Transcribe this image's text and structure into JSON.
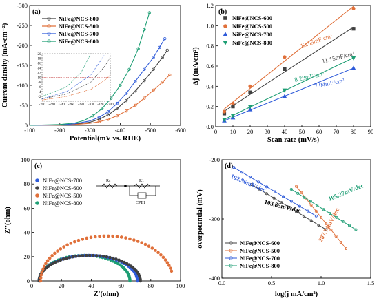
{
  "colors": {
    "NiFe@NCS-600": "#404040",
    "NiFe@NCS-500": "#e0703a",
    "NiFe@NCS-700": "#2f5bd9",
    "NiFe@NCS-800": "#1e9e74",
    "NiFe@NCS-600-dark": "#444444"
  },
  "chart_data": [
    {
      "panel": "(a)",
      "type": "line",
      "xlabel": "Potential(mV vs. RHE)",
      "ylabel": "Current density (mA·cm⁻²)",
      "xlim": [
        -100,
        -600
      ],
      "ylim": [
        0,
        -300
      ],
      "xticks": [
        -100,
        -200,
        -300,
        -400,
        -500,
        -600
      ],
      "yticks": [
        0,
        -50,
        -100,
        -150,
        -200,
        -250,
        -300
      ],
      "legend_position": "top-left",
      "series": [
        {
          "name": "NiFe@NCS-600",
          "x": [
            -100,
            -200,
            -250,
            -300,
            -330,
            -360,
            -390,
            -420,
            -450,
            -480,
            -510,
            -540,
            -556
          ],
          "y": [
            0,
            -1,
            -3,
            -8,
            -15,
            -26,
            -42,
            -62,
            -86,
            -112,
            -140,
            -170,
            -188
          ]
        },
        {
          "name": "NiFe@NCS-500",
          "x": [
            -100,
            -200,
            -250,
            -300,
            -330,
            -360,
            -390,
            -420,
            -450,
            -480,
            -510,
            -540,
            -564
          ],
          "y": [
            0,
            -0.5,
            -2,
            -5,
            -9,
            -15,
            -24,
            -36,
            -50,
            -68,
            -88,
            -108,
            -126
          ]
        },
        {
          "name": "NiFe@NCS-700",
          "x": [
            -100,
            -200,
            -250,
            -300,
            -330,
            -360,
            -390,
            -420,
            -450,
            -480,
            -510,
            -530,
            -548
          ],
          "y": [
            0,
            -1,
            -4,
            -11,
            -20,
            -34,
            -55,
            -80,
            -110,
            -140,
            -170,
            -195,
            -217
          ]
        },
        {
          "name": "NiFe@NCS-800",
          "x": [
            -100,
            -200,
            -250,
            -280,
            -310,
            -340,
            -370,
            -400,
            -430,
            -460,
            -480,
            -497
          ],
          "y": [
            0,
            -2,
            -6,
            -12,
            -24,
            -42,
            -68,
            -100,
            -140,
            -192,
            -240,
            -282
          ]
        }
      ],
      "inset": {
        "xlim": [
          -200,
          -340
        ],
        "ylim": [
          0,
          -20
        ],
        "xticks": [
          -200,
          -220,
          -240,
          -260,
          -280,
          -300,
          -320,
          -340
        ],
        "yticks": [
          -2,
          -4,
          -6,
          -8,
          -10,
          -12,
          -14,
          -16,
          -18,
          -20
        ],
        "reference_line_y": -10
      }
    },
    {
      "panel": "(b)",
      "type": "scatter",
      "xlabel": "Scan rate (mV/s)",
      "ylabel": "Δj (mA/cm²)",
      "xlim": [
        0,
        90
      ],
      "ylim": [
        0,
        1.2
      ],
      "xticks": [
        0,
        10,
        20,
        30,
        40,
        50,
        60,
        70,
        80,
        90
      ],
      "yticks": [
        0.0,
        0.2,
        0.4,
        0.6,
        0.8,
        1.0,
        1.2
      ],
      "legend_position": "top-left",
      "x": [
        5,
        10,
        20,
        40,
        80
      ],
      "series": [
        {
          "name": "NiFe@NCS-600",
          "values": [
            0.13,
            0.2,
            0.34,
            0.57,
            0.97
          ],
          "fit_label": "11.15mF/cm²"
        },
        {
          "name": "NiFe@NCS-500",
          "values": [
            0.15,
            0.23,
            0.4,
            0.69,
            1.17
          ],
          "fit_label": "13.55mF/cm²"
        },
        {
          "name": "NiFe@NCS-700",
          "values": [
            0.06,
            0.09,
            0.17,
            0.3,
            0.58
          ],
          "fit_label": "7.04mF/cm²"
        },
        {
          "name": "NiFe@NCS-800",
          "values": [
            0.07,
            0.11,
            0.2,
            0.36,
            0.68
          ],
          "fit_label": "8.28mF/cm²"
        }
      ]
    },
    {
      "panel": "(c)",
      "type": "scatter",
      "xlabel": "Z'(ohm)",
      "ylabel": "Z''(ohm)",
      "xlim": [
        0,
        100
      ],
      "ylim": [
        0,
        100
      ],
      "xticks": [
        0,
        20,
        40,
        60,
        80,
        100
      ],
      "yticks": [
        0,
        20,
        40,
        60,
        80,
        100
      ],
      "legend_position": "top-left",
      "circuit_labels": [
        "Rs",
        "R1",
        "CPE1"
      ],
      "series": [
        {
          "name": "NiFe@NCS-700",
          "r_start": 5,
          "r_end": 71,
          "peak": 21
        },
        {
          "name": "NiFe@NCS-600",
          "r_start": 5,
          "r_end": 73,
          "peak": 21
        },
        {
          "name": "NiFe@NCS-500",
          "r_start": 6,
          "r_end": 95,
          "peak": 37,
          "open": true
        },
        {
          "name": "NiFe@NCS-800",
          "r_start": 5,
          "r_end": 66,
          "peak": 21
        }
      ]
    },
    {
      "panel": "(d)",
      "type": "line",
      "xlabel": "log(j mA/cm²)",
      "ylabel": "overpotential (mV)",
      "xlim": [
        0.0,
        1.5
      ],
      "ylim": [
        -400,
        -200
      ],
      "xticks": [
        0.0,
        0.5,
        1.0,
        1.5
      ],
      "yticks": [
        -200,
        -300,
        -400
      ],
      "legend_position": "bottom-left",
      "series": [
        {
          "name": "NiFe@NCS-600",
          "x_range": [
            0.3,
            1.05
          ],
          "y_range": [
            -242,
            -318
          ],
          "slope_label": "103.85mV/dec"
        },
        {
          "name": "NiFe@NCS-500",
          "x_range": [
            0.75,
            1.25
          ],
          "y_range": [
            -245,
            -350
          ],
          "slope_label": "207.74mV/dec"
        },
        {
          "name": "NiFe@NCS-700",
          "x_range": [
            0.12,
            0.95
          ],
          "y_range": [
            -213,
            -295
          ],
          "slope_label": "102.96mV/dec"
        },
        {
          "name": "NiFe@NCS-800",
          "x_range": [
            0.7,
            1.35
          ],
          "y_range": [
            -250,
            -318
          ],
          "slope_label": "105.27mV/dec"
        }
      ]
    }
  ]
}
